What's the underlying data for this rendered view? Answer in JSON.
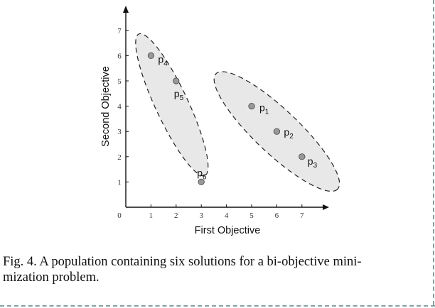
{
  "caption": {
    "line1": "Fig. 4.  A population containing six solutions for a bi-objective mini-",
    "line2": "mization problem."
  },
  "chart_data": {
    "type": "scatter",
    "xlabel": "First Objective",
    "ylabel": "Second Objective",
    "xlim": [
      0,
      8
    ],
    "ylim": [
      0,
      8
    ],
    "x_ticks": [
      "0",
      "1",
      "2",
      "3",
      "4",
      "5",
      "6",
      "7"
    ],
    "y_ticks": [
      "1",
      "2",
      "3",
      "4",
      "5",
      "6",
      "7"
    ],
    "grid": false,
    "points": [
      {
        "label": "p",
        "sub": "1",
        "x": 5,
        "y": 4
      },
      {
        "label": "p",
        "sub": "2",
        "x": 6,
        "y": 3
      },
      {
        "label": "p",
        "sub": "3",
        "x": 7,
        "y": 2
      },
      {
        "label": "p",
        "sub": "4",
        "x": 1,
        "y": 6
      },
      {
        "label": "p",
        "sub": "5",
        "x": 2,
        "y": 5
      },
      {
        "label": "p",
        "sub": "6",
        "x": 3,
        "y": 1
      }
    ],
    "groups": [
      {
        "members": [
          "p1",
          "p2",
          "p3"
        ],
        "fill": "#e8e8e8",
        "stroke": "#222222",
        "dashed": true
      },
      {
        "members": [
          "p4",
          "p5",
          "p6"
        ],
        "fill": "#e8e8e8",
        "stroke": "#222222",
        "dashed": true
      }
    ],
    "point_color": "#999999",
    "point_stroke": "#444444"
  }
}
